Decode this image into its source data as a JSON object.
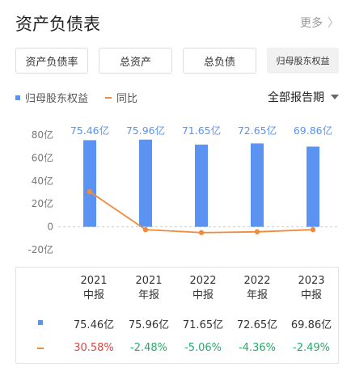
{
  "header": {
    "title": "资产负债表",
    "more_label": "更多",
    "more_chevron": "〉"
  },
  "tabs": [
    {
      "label": "资产负债率",
      "active": false
    },
    {
      "label": "总资产",
      "active": false
    },
    {
      "label": "总负债",
      "active": false
    },
    {
      "label": "归母股东权益",
      "active": true
    }
  ],
  "legend": {
    "bar_label": "归母股东权益",
    "line_label": "同比",
    "period_label": "全部报告期"
  },
  "colors": {
    "bar": "#5b93f2",
    "line": "#f08a3c",
    "positive": "#e0453f",
    "negative": "#2aa86a"
  },
  "chart_data": {
    "type": "bar",
    "categories": [
      "2021 中报",
      "2021 年报",
      "2022 中报",
      "2022 年报",
      "2023 中报"
    ],
    "series": [
      {
        "name": "归母股东权益",
        "type": "bar",
        "values": [
          75.46,
          75.96,
          71.65,
          72.65,
          69.86
        ],
        "labels": [
          "75.46亿",
          "75.96亿",
          "71.65亿",
          "72.65亿",
          "69.86亿"
        ]
      },
      {
        "name": "同比",
        "type": "line",
        "values": [
          30.58,
          -2.48,
          -5.06,
          -4.36,
          -2.49
        ]
      }
    ],
    "y_ticks": [
      "80亿",
      "60亿",
      "40亿",
      "20亿",
      "0",
      "-20亿"
    ],
    "ylim": [
      -20,
      80
    ]
  },
  "table": {
    "columns": [
      {
        "year": "2021",
        "period": "中报"
      },
      {
        "year": "2021",
        "period": "年报"
      },
      {
        "year": "2022",
        "period": "中报"
      },
      {
        "year": "2022",
        "period": "年报"
      },
      {
        "year": "2023",
        "period": "中报"
      }
    ],
    "equity_row": [
      "75.46亿",
      "75.96亿",
      "71.65亿",
      "72.65亿",
      "69.86亿"
    ],
    "yoy_row": [
      "30.58%",
      "-2.48%",
      "-5.06%",
      "-4.36%",
      "-2.49%"
    ]
  }
}
